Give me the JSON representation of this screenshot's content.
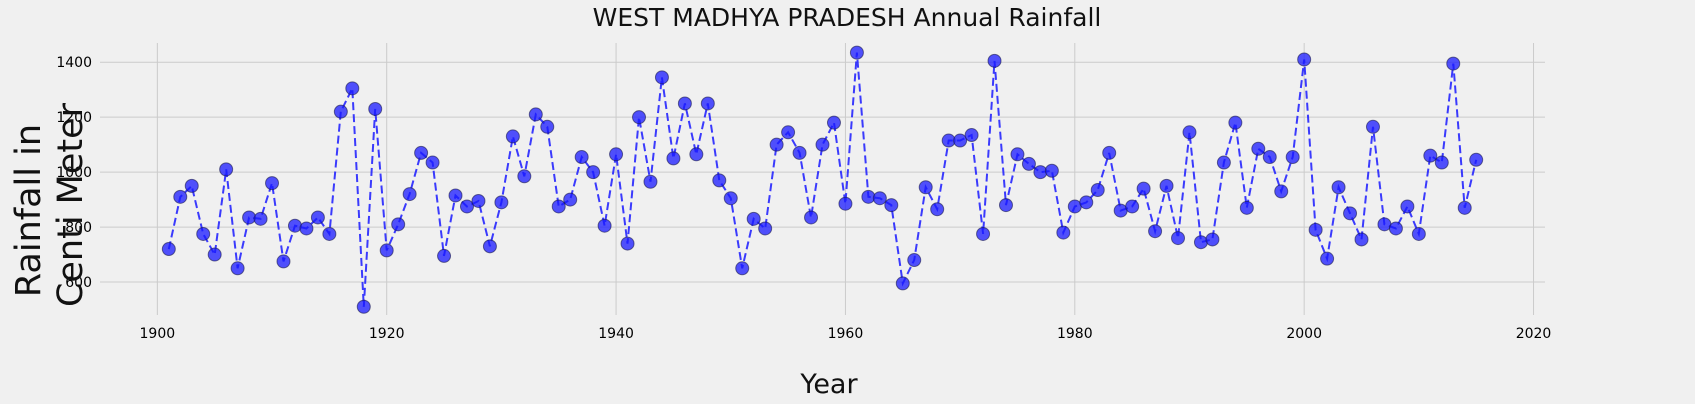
{
  "chart_data": {
    "type": "line",
    "title": "WEST MADHYA PRADESH Annual Rainfall",
    "xlabel": "Year",
    "ylabel_lines": [
      "Rainfall in",
      "Centi Meter"
    ],
    "xlim": [
      1895,
      2021
    ],
    "ylim": [
      480,
      1470
    ],
    "xticks": [
      1900,
      1920,
      1940,
      1960,
      1980,
      2000,
      2020
    ],
    "yticks": [
      600,
      800,
      1000,
      1200,
      1400
    ],
    "grid": true,
    "line_style": "dashed",
    "marker": "circle",
    "color": "#1a1aff",
    "x": [
      1901,
      1902,
      1903,
      1904,
      1905,
      1906,
      1907,
      1908,
      1909,
      1910,
      1911,
      1912,
      1913,
      1914,
      1915,
      1916,
      1917,
      1918,
      1919,
      1920,
      1921,
      1922,
      1923,
      1924,
      1925,
      1926,
      1927,
      1928,
      1929,
      1930,
      1931,
      1932,
      1933,
      1934,
      1935,
      1936,
      1937,
      1938,
      1939,
      1940,
      1941,
      1942,
      1943,
      1944,
      1945,
      1946,
      1947,
      1948,
      1949,
      1950,
      1951,
      1952,
      1953,
      1954,
      1955,
      1956,
      1957,
      1958,
      1959,
      1960,
      1961,
      1962,
      1963,
      1964,
      1965,
      1966,
      1967,
      1968,
      1969,
      1970,
      1971,
      1972,
      1973,
      1974,
      1975,
      1976,
      1977,
      1978,
      1979,
      1980,
      1981,
      1982,
      1983,
      1984,
      1985,
      1986,
      1987,
      1988,
      1989,
      1990,
      1991,
      1992,
      1993,
      1994,
      1995,
      1996,
      1997,
      1998,
      1999,
      2000,
      2001,
      2002,
      2003,
      2004,
      2005,
      2006,
      2007,
      2008,
      2009,
      2010,
      2011,
      2012,
      2013,
      2014,
      2015
    ],
    "y": [
      720,
      910,
      950,
      775,
      700,
      1010,
      650,
      835,
      830,
      960,
      675,
      805,
      795,
      835,
      775,
      1220,
      1305,
      510,
      1230,
      715,
      810,
      920,
      1070,
      1035,
      695,
      915,
      875,
      895,
      730,
      890,
      1130,
      985,
      1210,
      1165,
      875,
      900,
      1055,
      1000,
      805,
      1065,
      740,
      1200,
      965,
      1345,
      1050,
      1250,
      1065,
      1250,
      970,
      905,
      650,
      830,
      795,
      1100,
      1145,
      1070,
      835,
      1100,
      1180,
      885,
      1435,
      910,
      905,
      880,
      595,
      680,
      945,
      865,
      1115,
      1115,
      1135,
      775,
      1405,
      880,
      1065,
      1030,
      1000,
      1005,
      780,
      875,
      890,
      935,
      1070,
      860,
      875,
      940,
      785,
      950,
      760,
      1145,
      745,
      755,
      1035,
      1180,
      870,
      1085,
      1055,
      930,
      1055,
      1410,
      790,
      685,
      945,
      850,
      755,
      1165,
      810,
      795,
      875,
      775,
      1060,
      1035,
      1395,
      870,
      1045
    ]
  }
}
